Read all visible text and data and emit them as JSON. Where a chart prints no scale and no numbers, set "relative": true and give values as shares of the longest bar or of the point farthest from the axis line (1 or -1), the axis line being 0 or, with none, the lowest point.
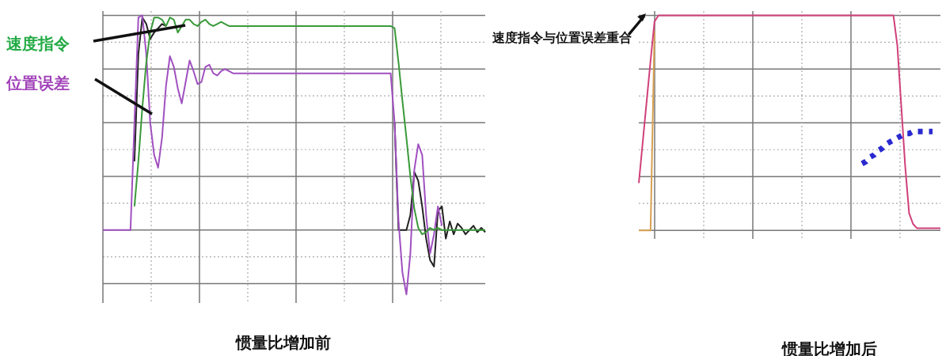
{
  "chart_data": [
    {
      "type": "line",
      "title": "惯量比增加前",
      "relative": true,
      "grid": true,
      "legend": false,
      "marker": "none",
      "line_style": "solid",
      "categories": [
        null,
        null,
        null,
        null,
        null,
        null,
        null,
        null,
        null,
        null,
        null,
        null,
        null,
        null,
        null,
        null,
        null,
        null,
        null,
        null,
        null,
        null,
        null,
        null,
        null,
        null,
        null,
        null,
        null,
        null,
        null,
        null,
        null,
        null,
        null,
        null,
        null,
        null,
        null,
        null,
        null,
        null,
        null,
        null,
        null,
        null,
        null,
        null,
        null,
        null,
        null,
        null,
        null,
        null,
        null,
        null,
        null,
        null,
        null,
        null,
        null,
        null,
        null,
        null,
        null,
        null,
        null,
        null,
        null,
        null,
        null,
        null,
        null,
        null,
        null,
        null,
        null,
        null,
        null,
        null,
        null,
        null,
        null,
        null,
        null,
        null,
        null,
        null,
        null,
        null,
        null,
        null,
        null,
        null,
        null,
        null,
        null,
        null
      ],
      "series": [
        {
          "name": "速度指令",
          "color": "#3a9a3a",
          "values": [
            null,
            null,
            null,
            null,
            null,
            null,
            null,
            null,
            0.11,
            0.32,
            0.57,
            0.78,
            0.92,
            0.99,
            0.99,
            0.98,
            0.95,
            0.99,
            0.98,
            0.92,
            0.95,
            0.98,
            0.98,
            0.96,
            0.95,
            0.97,
            0.98,
            0.96,
            0.95,
            0.96,
            0.97,
            0.96,
            0.95,
            0.95,
            0.95,
            0.95,
            0.95,
            0.95,
            0.95,
            0.95,
            0.95,
            0.95,
            0.95,
            0.95,
            0.95,
            0.95,
            0.95,
            0.95,
            0.95,
            0.95,
            0.95,
            0.95,
            0.95,
            0.95,
            0.95,
            0.95,
            0.95,
            0.95,
            0.95,
            0.95,
            0.95,
            0.95,
            0.95,
            0.95,
            0.95,
            0.95,
            0.95,
            0.95,
            0.95,
            0.95,
            0.95,
            0.95,
            0.95,
            0.95,
            0.94,
            0.78,
            0.6,
            0.43,
            0.25,
            0.1,
            0.01,
            -0.02,
            -0.01,
            0.01,
            0,
            0.01,
            0,
            0,
            0,
            0,
            0,
            0,
            0,
            0,
            0,
            0,
            0,
            0
          ]
        },
        {
          "name": "位置误差",
          "color": "#a050c0",
          "values": [
            0,
            0,
            0,
            0,
            0,
            0,
            0,
            0,
            0.5,
            0.99,
            1.0,
            0.82,
            0.5,
            0.35,
            0.29,
            0.43,
            0.67,
            0.81,
            0.76,
            0.66,
            0.59,
            0.69,
            0.79,
            0.74,
            0.68,
            0.69,
            0.76,
            0.77,
            0.73,
            0.72,
            0.74,
            0.75,
            0.74,
            0.73,
            0.73,
            0.73,
            0.73,
            0.73,
            0.73,
            0.73,
            0.73,
            0.73,
            0.73,
            0.73,
            0.73,
            0.73,
            0.73,
            0.73,
            0.73,
            0.73,
            0.73,
            0.73,
            0.73,
            0.73,
            0.73,
            0.73,
            0.73,
            0.73,
            0.73,
            0.73,
            0.73,
            0.73,
            0.73,
            0.73,
            0.73,
            0.73,
            0.73,
            0.73,
            0.73,
            0.73,
            0.73,
            0.73,
            0.73,
            0.73,
            0.5,
            0.04,
            -0.2,
            -0.3,
            -0.11,
            0.28,
            0.4,
            0.35,
            0.07,
            -0.11,
            -0.02,
            0.11,
            0.02,
            null,
            null,
            null,
            null,
            null,
            null,
            null,
            null,
            null,
            null,
            null
          ]
        },
        {
          "color": "#222222",
          "values": [
            null,
            null,
            null,
            null,
            null,
            null,
            null,
            null,
            0.32,
            0.82,
            0.99,
            0.96,
            0.89,
            0.92,
            0.94,
            0.96,
            0.95,
            null,
            null,
            null,
            null,
            null,
            null,
            null,
            null,
            null,
            null,
            null,
            null,
            null,
            null,
            null,
            null,
            null,
            null,
            null,
            null,
            null,
            null,
            null,
            null,
            null,
            null,
            null,
            null,
            null,
            null,
            null,
            null,
            null,
            null,
            null,
            null,
            null,
            null,
            null,
            null,
            null,
            null,
            null,
            null,
            null,
            null,
            null,
            null,
            null,
            null,
            null,
            null,
            null,
            null,
            null,
            null,
            null,
            0.5,
            0,
            0,
            0,
            0.07,
            0.27,
            0.23,
            0.11,
            -0.04,
            -0.14,
            -0.17,
            0.09,
            0.11,
            -0.04,
            0.04,
            -0.02,
            0.03,
            0.01,
            -0.02,
            0,
            0.02,
            -0.01,
            0.01,
            -0.01
          ]
        }
      ]
    },
    {
      "type": "line",
      "title": "惯量比增加后",
      "relative": true,
      "grid": true,
      "legend": false,
      "marker": "none",
      "line_style": "solid",
      "annotations": [
        "速度指令与位置误差重合"
      ],
      "categories": [
        null,
        null,
        null,
        null,
        null,
        null,
        null,
        null,
        null,
        null,
        null,
        null,
        null,
        null,
        null,
        null,
        null,
        null,
        null,
        null,
        null,
        null,
        null,
        null,
        null,
        null,
        null,
        null,
        null,
        null,
        null,
        null,
        null,
        null,
        null,
        null,
        null,
        null,
        null,
        null,
        null,
        null,
        null,
        null,
        null,
        null,
        null,
        null,
        null,
        null,
        null,
        null,
        null,
        null,
        null,
        null,
        null,
        null,
        null,
        null,
        null,
        null,
        null,
        null,
        null,
        null,
        null,
        null,
        null,
        null,
        null,
        null,
        null,
        null,
        null,
        null,
        null,
        null
      ],
      "series": [
        {
          "line_style": "dotted",
          "color": "#2a2ad0",
          "values": [
            null,
            null,
            null,
            null,
            null,
            null,
            null,
            null,
            null,
            null,
            null,
            null,
            null,
            null,
            null,
            null,
            null,
            null,
            null,
            null,
            null,
            null,
            null,
            null,
            null,
            null,
            null,
            null,
            null,
            null,
            null,
            null,
            null,
            null,
            null,
            null,
            null,
            null,
            null,
            null,
            null,
            null,
            null,
            null,
            null,
            null,
            null,
            null,
            null,
            null,
            null,
            null,
            null,
            null,
            null,
            null,
            null,
            0.31,
            0.32,
            0.34,
            0.35,
            0.37,
            0.38,
            0.4,
            0.41,
            0.42,
            0.43,
            0.44,
            0.45,
            0.45,
            0.46,
            0.46,
            0.46,
            0.46,
            0.46,
            0.46,
            null,
            null
          ]
        },
        {
          "color": "#d0407a",
          "values": [
            0.22,
            0.41,
            0.6,
            0.79,
            0.97,
            1.0,
            1.0,
            1.0,
            1.0,
            1.0,
            1.0,
            1.0,
            1.0,
            1.0,
            1.0,
            1.0,
            1.0,
            1.0,
            1.0,
            1.0,
            1.0,
            1.0,
            1.0,
            1.0,
            1.0,
            1.0,
            1.0,
            1.0,
            1.0,
            1.0,
            1.0,
            1.0,
            1.0,
            1.0,
            1.0,
            1.0,
            1.0,
            1.0,
            1.0,
            1.0,
            1.0,
            1.0,
            1.0,
            1.0,
            1.0,
            1.0,
            1.0,
            1.0,
            1.0,
            1.0,
            1.0,
            1.0,
            1.0,
            1.0,
            1.0,
            1.0,
            1.0,
            1.0,
            1.0,
            1.0,
            1.0,
            1.0,
            1.0,
            1.0,
            1.0,
            1.0,
            0.86,
            0.58,
            0.3,
            0.08,
            0.03,
            0.01,
            0.01,
            0.01,
            0.01,
            0.01,
            0.01,
            0.01
          ]
        },
        {
          "color": "#d8a050",
          "values": [
            0,
            0,
            0,
            0,
            0.93,
            null,
            null,
            null,
            null,
            null,
            null,
            null,
            null,
            null,
            null,
            null,
            null,
            null,
            null,
            null,
            null,
            null,
            null,
            null,
            null,
            null,
            null,
            null,
            null,
            null,
            null,
            null,
            null,
            null,
            null,
            null,
            null,
            null,
            null,
            null,
            null,
            null,
            null,
            null,
            null,
            null,
            null,
            null,
            null,
            null,
            null,
            null,
            null,
            null,
            null,
            null,
            null,
            null,
            null,
            null,
            null,
            null,
            null,
            null,
            null,
            null,
            null,
            null,
            null,
            null,
            null,
            null,
            null,
            null,
            null,
            null,
            null,
            null
          ]
        }
      ]
    }
  ]
}
